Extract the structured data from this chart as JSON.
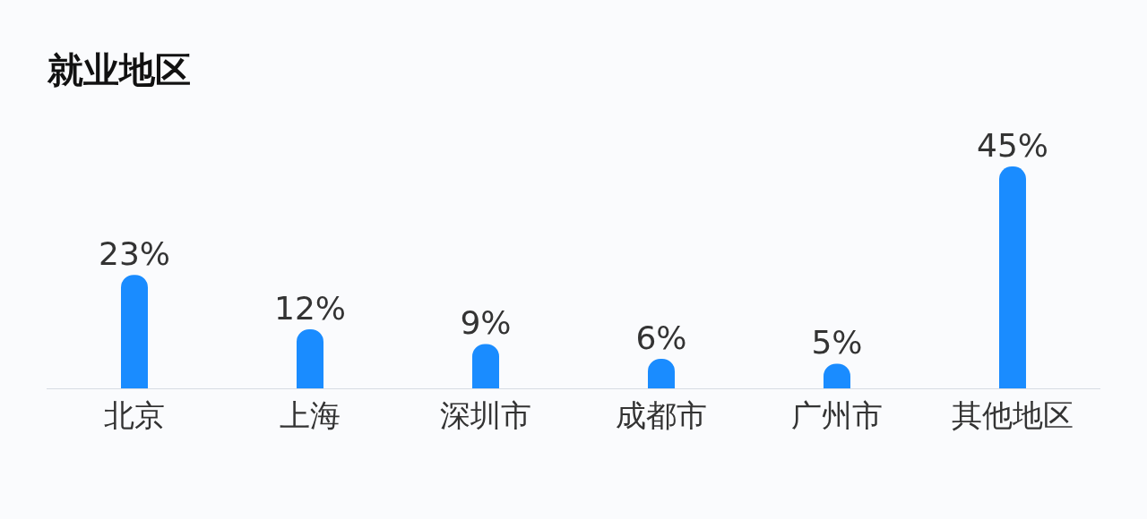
{
  "chart_data": {
    "type": "bar",
    "title": "就业地区",
    "categories": [
      "北京",
      "上海",
      "深圳市",
      "成都市",
      "广州市",
      "其他地区"
    ],
    "values": [
      23,
      12,
      9,
      6,
      5,
      45
    ],
    "value_labels": [
      "23%",
      "12%",
      "9%",
      "6%",
      "5%",
      "45%"
    ],
    "color": "#1a8cff",
    "grid": false,
    "legend": false,
    "tick_labels": "x"
  }
}
